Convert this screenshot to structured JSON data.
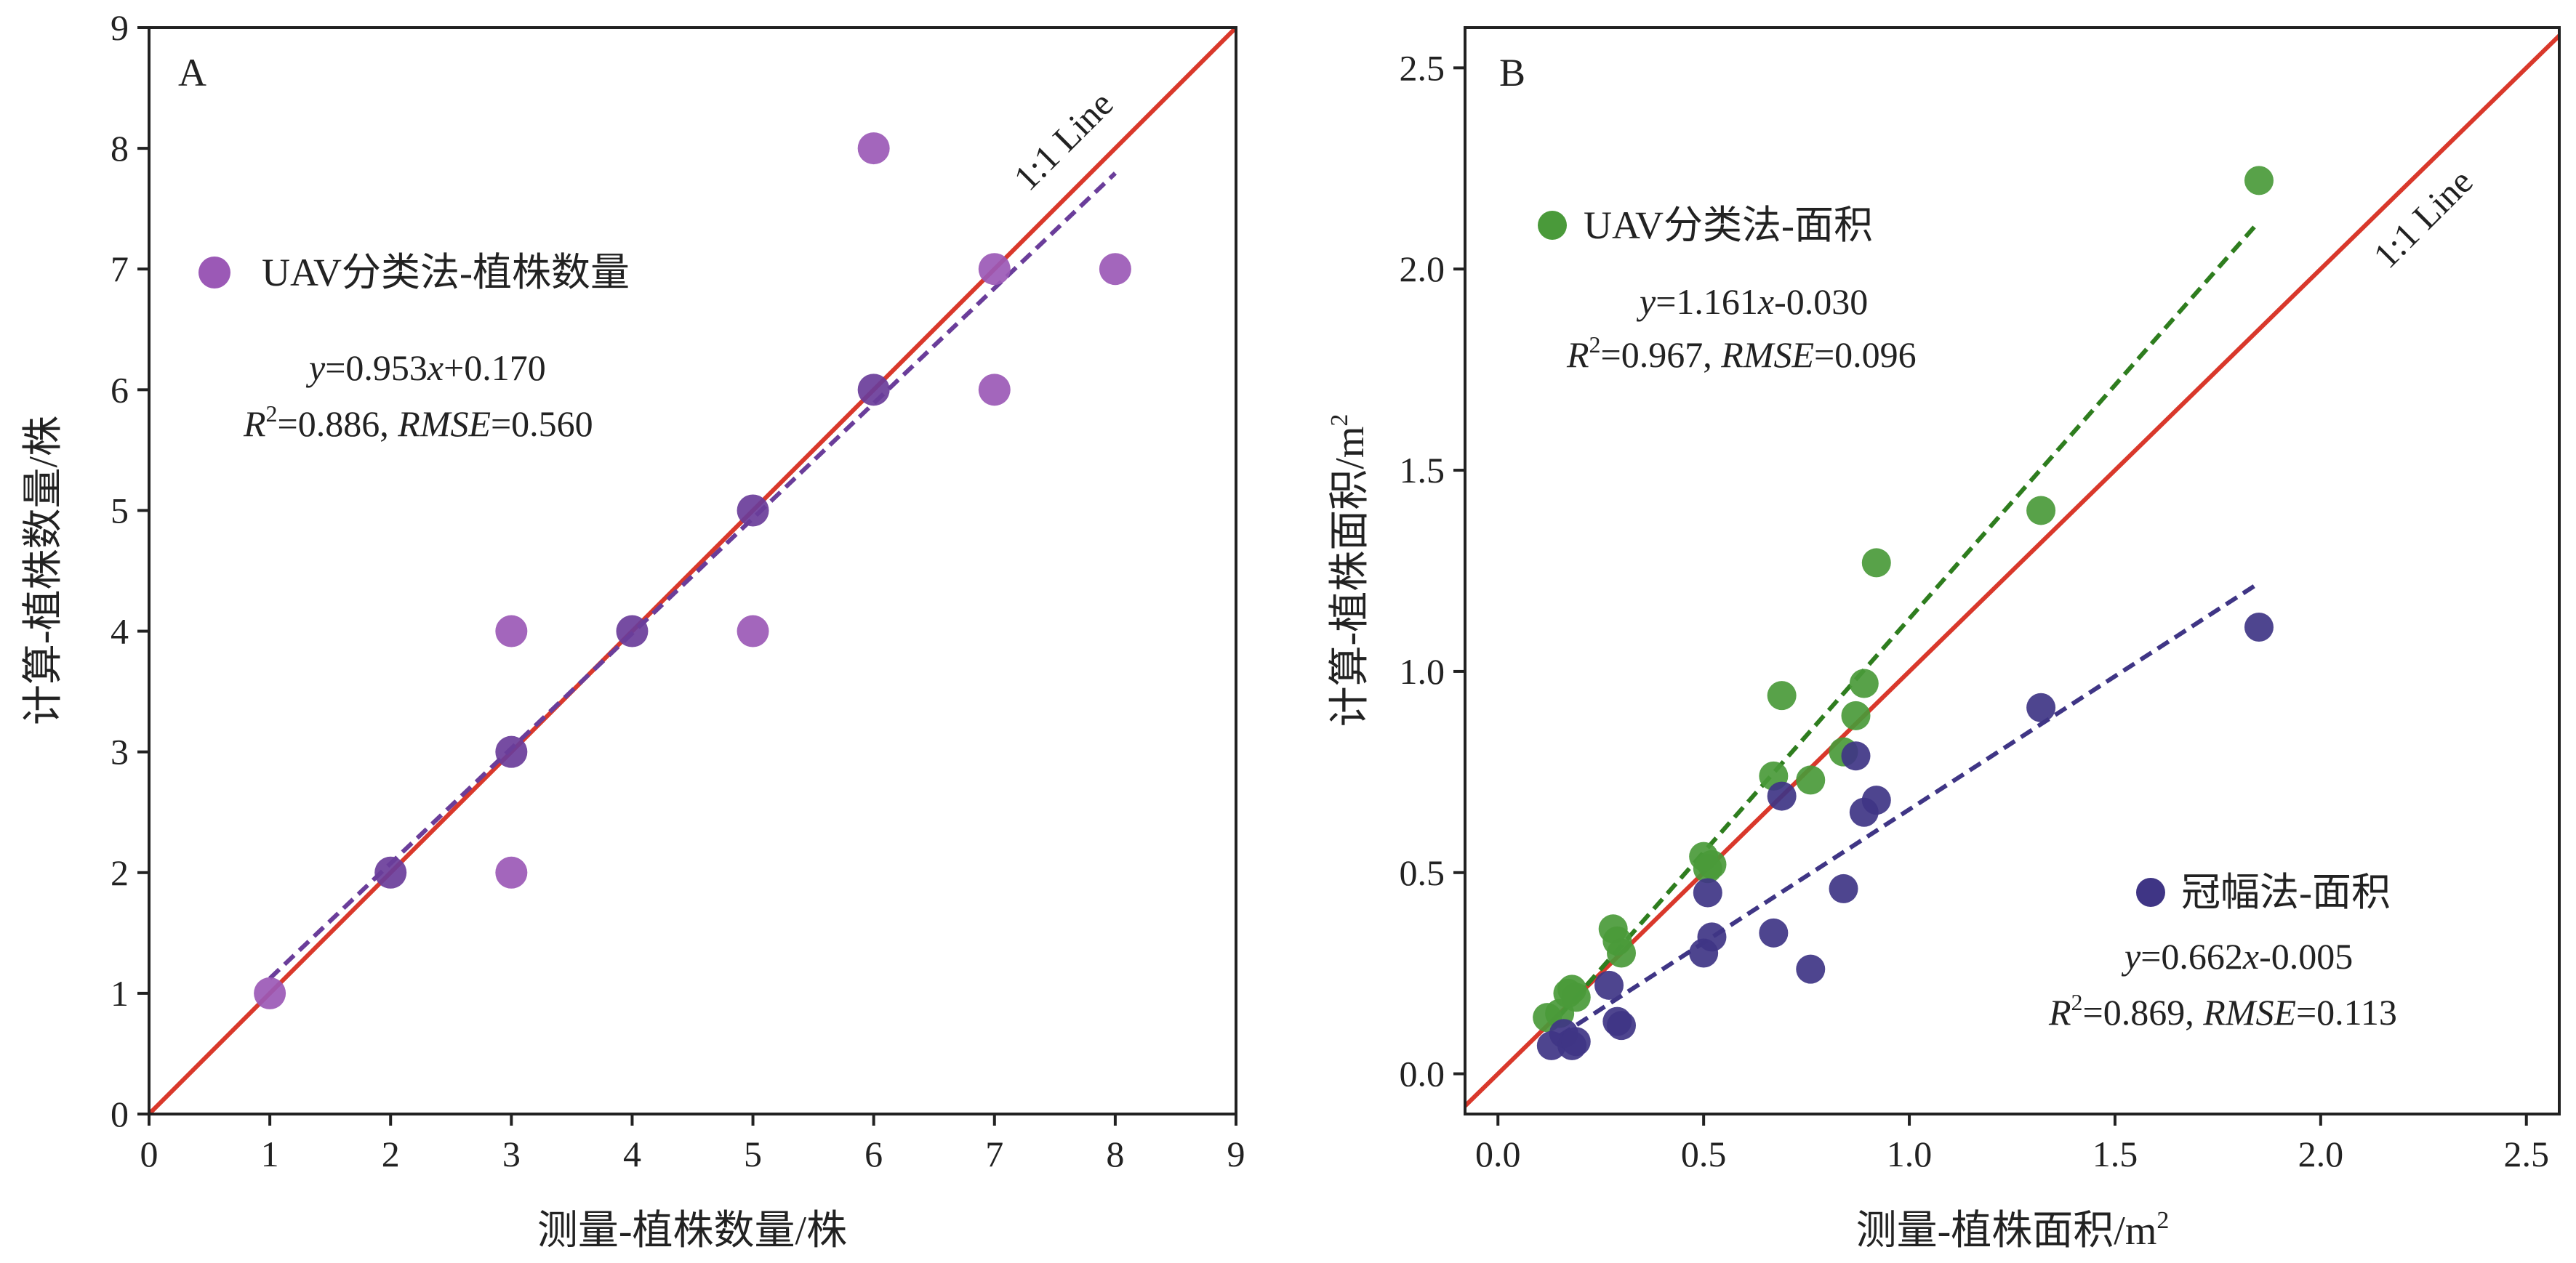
{
  "chart_data": [
    {
      "panel": "A",
      "type": "scatter",
      "xlabel": "测量-植株数量/株",
      "ylabel": "计算-植株数量/株",
      "xlim": [
        0,
        9
      ],
      "ylim": [
        0,
        9
      ],
      "xticks": [
        "0",
        "1",
        "2",
        "3",
        "4",
        "5",
        "6",
        "7",
        "8",
        "9"
      ],
      "yticks": [
        "0",
        "1",
        "2",
        "3",
        "4",
        "5",
        "6",
        "7",
        "8",
        "9"
      ],
      "grid": false,
      "legend_placement": "upper-left",
      "reference_line": {
        "label": "1:1 Line",
        "color": "#d9382b",
        "from": [
          0,
          0
        ],
        "to": [
          9,
          9
        ]
      },
      "series": [
        {
          "name": "UAV分类法-植株数量",
          "color": "#9b59b6",
          "dark_color": "#6a3d9a",
          "points": [
            {
              "x": 1,
              "y": 1,
              "dark": false
            },
            {
              "x": 2,
              "y": 2,
              "dark": true
            },
            {
              "x": 3,
              "y": 2,
              "dark": false
            },
            {
              "x": 3,
              "y": 3,
              "dark": true
            },
            {
              "x": 3,
              "y": 4,
              "dark": false
            },
            {
              "x": 4,
              "y": 4,
              "dark": true
            },
            {
              "x": 5,
              "y": 4,
              "dark": false
            },
            {
              "x": 5,
              "y": 5,
              "dark": true
            },
            {
              "x": 6,
              "y": 6,
              "dark": true
            },
            {
              "x": 6,
              "y": 8,
              "dark": false
            },
            {
              "x": 7,
              "y": 6,
              "dark": false
            },
            {
              "x": 7,
              "y": 7,
              "dark": false
            },
            {
              "x": 8,
              "y": 7,
              "dark": false
            }
          ],
          "fit": {
            "slope": 0.953,
            "intercept": 0.17,
            "x_range": [
              1,
              8
            ],
            "color": "#6a3d9a"
          },
          "equation": {
            "y_var": "y",
            "text_mid": "=0.953",
            "x_var": "x",
            "text_end": "+0.170"
          },
          "stats": {
            "r_label": "R",
            "r_sup": "2",
            "r_value": "=0.886, ",
            "rmse_label": "RMSE",
            "rmse_value": "=0.560"
          }
        }
      ]
    },
    {
      "panel": "B",
      "type": "scatter",
      "xlabel": "测量-植株面积/m",
      "xlabel_sup": "2",
      "ylabel": "计算-植株面积/m",
      "ylabel_sup": "2",
      "xlim": [
        -0.08,
        2.58
      ],
      "ylim": [
        -0.1,
        2.6
      ],
      "xticks": [
        "0.0",
        "0.5",
        "1.0",
        "1.5",
        "2.0",
        "2.5"
      ],
      "yticks": [
        "0.0",
        "0.5",
        "1.0",
        "1.5",
        "2.0",
        "2.5"
      ],
      "grid": false,
      "reference_line": {
        "label": "1:1 Line",
        "color": "#d9382b",
        "from": [
          -0.1,
          -0.1
        ],
        "to": [
          2.6,
          2.6
        ]
      },
      "series": [
        {
          "name": "UAV分类法-面积",
          "color": "#4a9a3a",
          "legend_placement": "upper-left",
          "points": [
            {
              "x": 0.12,
              "y": 0.14
            },
            {
              "x": 0.15,
              "y": 0.15
            },
            {
              "x": 0.17,
              "y": 0.2
            },
            {
              "x": 0.18,
              "y": 0.21
            },
            {
              "x": 0.19,
              "y": 0.19
            },
            {
              "x": 0.28,
              "y": 0.36
            },
            {
              "x": 0.29,
              "y": 0.33
            },
            {
              "x": 0.3,
              "y": 0.3
            },
            {
              "x": 0.5,
              "y": 0.54
            },
            {
              "x": 0.51,
              "y": 0.51
            },
            {
              "x": 0.52,
              "y": 0.52
            },
            {
              "x": 0.67,
              "y": 0.74
            },
            {
              "x": 0.69,
              "y": 0.94
            },
            {
              "x": 0.76,
              "y": 0.73
            },
            {
              "x": 0.84,
              "y": 0.8
            },
            {
              "x": 0.87,
              "y": 0.89
            },
            {
              "x": 0.89,
              "y": 0.97
            },
            {
              "x": 0.92,
              "y": 1.27
            },
            {
              "x": 1.32,
              "y": 1.4
            },
            {
              "x": 1.85,
              "y": 2.22
            }
          ],
          "fit": {
            "slope": 1.161,
            "intercept": -0.03,
            "x_range": [
              0.15,
              1.85
            ],
            "color": "#2e7d1e"
          },
          "equation": {
            "y_var": "y",
            "text_mid": "=1.161",
            "x_var": "x",
            "text_end": "-0.030"
          },
          "stats": {
            "r_label": "R",
            "r_sup": "2",
            "r_value": "=0.967, ",
            "rmse_label": "RMSE",
            "rmse_value": "=0.096"
          }
        },
        {
          "name": "冠幅法-面积",
          "color": "#3f3585",
          "legend_placement": "lower-right",
          "points": [
            {
              "x": 0.13,
              "y": 0.07
            },
            {
              "x": 0.16,
              "y": 0.1
            },
            {
              "x": 0.18,
              "y": 0.07
            },
            {
              "x": 0.19,
              "y": 0.08
            },
            {
              "x": 0.27,
              "y": 0.22
            },
            {
              "x": 0.29,
              "y": 0.13
            },
            {
              "x": 0.3,
              "y": 0.12
            },
            {
              "x": 0.5,
              "y": 0.3
            },
            {
              "x": 0.51,
              "y": 0.45
            },
            {
              "x": 0.52,
              "y": 0.34
            },
            {
              "x": 0.67,
              "y": 0.35
            },
            {
              "x": 0.69,
              "y": 0.69
            },
            {
              "x": 0.76,
              "y": 0.26
            },
            {
              "x": 0.84,
              "y": 0.46
            },
            {
              "x": 0.87,
              "y": 0.79
            },
            {
              "x": 0.89,
              "y": 0.65
            },
            {
              "x": 0.92,
              "y": 0.68
            },
            {
              "x": 1.32,
              "y": 0.91
            },
            {
              "x": 1.85,
              "y": 1.11
            }
          ],
          "fit": {
            "slope": 0.662,
            "intercept": -0.005,
            "x_range": [
              0.15,
              1.85
            ],
            "color": "#3f3585"
          },
          "equation": {
            "y_var": "y",
            "text_mid": "=0.662",
            "x_var": "x",
            "text_end": "-0.005"
          },
          "stats": {
            "r_label": "R",
            "r_sup": "2",
            "r_value": "=0.869, ",
            "rmse_label": "RMSE",
            "rmse_value": "=0.113"
          }
        }
      ]
    }
  ]
}
